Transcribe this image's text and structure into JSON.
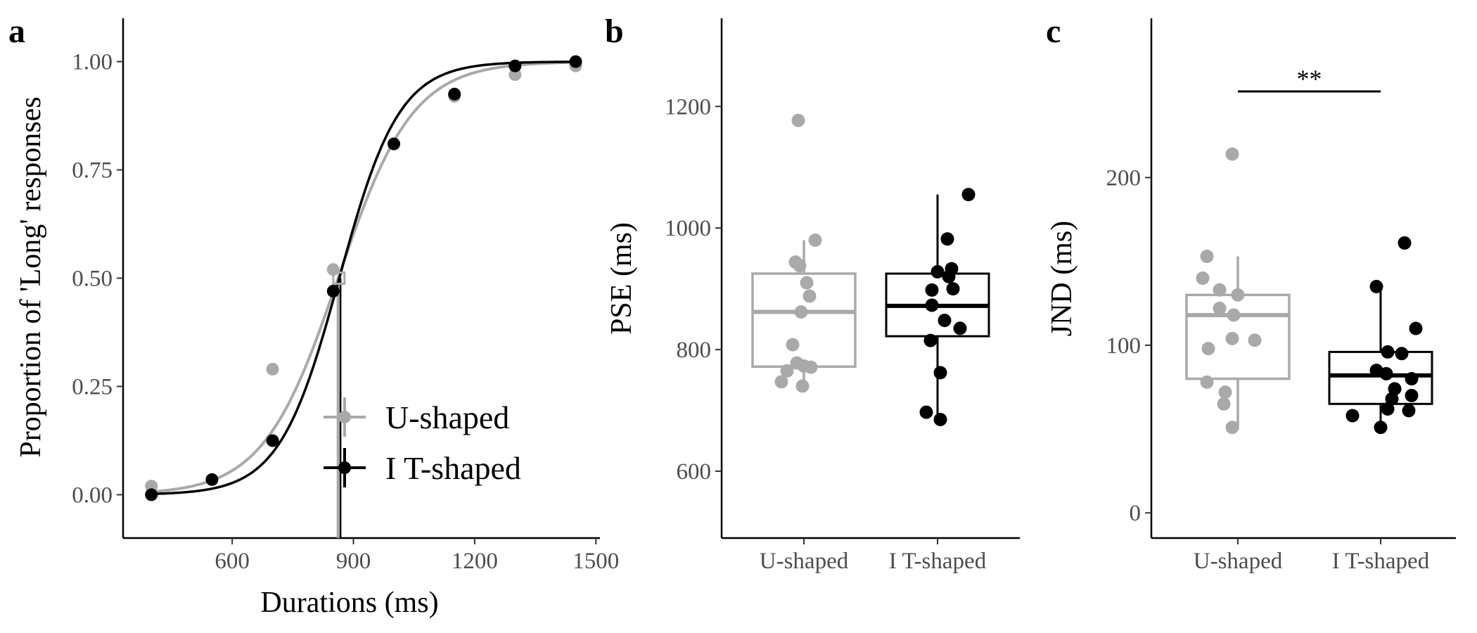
{
  "colors": {
    "u_shaped": "#a9a9a9",
    "t_shaped": "#000000"
  },
  "chart_data": [
    {
      "panel": "a",
      "type": "line",
      "xlabel": "Durations (ms)",
      "ylabel": "Proportion of 'Long' responses",
      "xlim": [
        330,
        1510
      ],
      "ylim": [
        -0.1,
        1.1
      ],
      "x_ticks": [
        600,
        900,
        1200,
        1500
      ],
      "y_ticks": [
        "0.00",
        "0.25",
        "0.50",
        "0.75",
        "1.00"
      ],
      "legend": {
        "position": "bottom-right"
      },
      "series": [
        {
          "name": "U-shaped",
          "color": "#a9a9a9",
          "points": [
            [
              400,
              0.02
            ],
            [
              700,
              0.29
            ],
            [
              850,
              0.52
            ],
            [
              1000,
              0.81
            ],
            [
              1150,
              0.92
            ],
            [
              1300,
              0.97
            ],
            [
              1450,
              0.99
            ]
          ],
          "fit": {
            "pse": 862,
            "slope": 0.0108
          },
          "pse_marker": 862
        },
        {
          "name": "I T-shaped",
          "color": "#000000",
          "points": [
            [
              400,
              0.0
            ],
            [
              550,
              0.035
            ],
            [
              700,
              0.125
            ],
            [
              850,
              0.47
            ],
            [
              1000,
              0.81
            ],
            [
              1150,
              0.925
            ],
            [
              1300,
              0.99
            ],
            [
              1450,
              1.0
            ]
          ],
          "fit": {
            "pse": 865,
            "slope": 0.0135
          },
          "pse_marker": 868
        }
      ]
    },
    {
      "panel": "b",
      "type": "box",
      "ylabel": "PSE (ms)",
      "ylim": [
        490,
        1345
      ],
      "y_ticks": [
        600,
        800,
        1000,
        1200
      ],
      "categories": [
        "U-shaped",
        "I T-shaped"
      ],
      "boxes": [
        {
          "category": "U-shaped",
          "color": "#a9a9a9",
          "q1": 772,
          "median": 862,
          "q3": 925,
          "whisker_low": 738,
          "whisker_high": 980,
          "points": [
            [
              -0.04,
              1177
            ],
            [
              0.08,
              980
            ],
            [
              -0.06,
              944
            ],
            [
              -0.03,
              938
            ],
            [
              0.02,
              910
            ],
            [
              0.04,
              888
            ],
            [
              -0.02,
              862
            ],
            [
              -0.08,
              808
            ],
            [
              -0.05,
              778
            ],
            [
              0.0,
              773
            ],
            [
              0.05,
              771
            ],
            [
              -0.12,
              765
            ],
            [
              -0.16,
              747
            ],
            [
              -0.01,
              740
            ]
          ]
        },
        {
          "category": "I T-shaped",
          "color": "#000000",
          "q1": 822,
          "median": 872,
          "q3": 925,
          "whisker_low": 685,
          "whisker_high": 1055,
          "points": [
            [
              0.22,
              1055
            ],
            [
              0.07,
              982
            ],
            [
              0.0,
              928
            ],
            [
              0.1,
              933
            ],
            [
              0.08,
              920
            ],
            [
              -0.04,
              898
            ],
            [
              0.11,
              900
            ],
            [
              -0.04,
              873
            ],
            [
              0.05,
              848
            ],
            [
              0.16,
              835
            ],
            [
              -0.05,
              815
            ],
            [
              0.02,
              762
            ],
            [
              -0.08,
              697
            ],
            [
              0.02,
              685
            ]
          ]
        }
      ]
    },
    {
      "panel": "c",
      "type": "box",
      "ylabel": "JND (ms)",
      "ylim": [
        -15,
        295
      ],
      "y_ticks": [
        0,
        100,
        200
      ],
      "categories": [
        "U-shaped",
        "I T-shaped"
      ],
      "significance": "**",
      "boxes": [
        {
          "category": "U-shaped",
          "color": "#a9a9a9",
          "q1": 80,
          "median": 118,
          "q3": 130,
          "whisker_low": 50,
          "whisker_high": 153,
          "points": [
            [
              -0.04,
              214
            ],
            [
              -0.22,
              153
            ],
            [
              -0.25,
              140
            ],
            [
              -0.13,
              133
            ],
            [
              0.0,
              130
            ],
            [
              -0.13,
              122
            ],
            [
              -0.03,
              118
            ],
            [
              -0.04,
              104
            ],
            [
              -0.21,
              98
            ],
            [
              0.12,
              103
            ],
            [
              -0.22,
              78
            ],
            [
              -0.09,
              72
            ],
            [
              -0.1,
              65
            ],
            [
              -0.04,
              51
            ]
          ]
        },
        {
          "category": "I T-shaped",
          "color": "#000000",
          "q1": 65,
          "median": 82,
          "q3": 96,
          "whisker_low": 51,
          "whisker_high": 135,
          "points": [
            [
              0.17,
              161
            ],
            [
              -0.03,
              135
            ],
            [
              0.25,
              110
            ],
            [
              0.05,
              96
            ],
            [
              0.15,
              95
            ],
            [
              -0.03,
              85
            ],
            [
              0.04,
              83
            ],
            [
              0.22,
              80
            ],
            [
              0.1,
              74
            ],
            [
              0.08,
              68
            ],
            [
              0.22,
              70
            ],
            [
              -0.2,
              58
            ],
            [
              0.05,
              62
            ],
            [
              0.2,
              61
            ],
            [
              0.0,
              51
            ]
          ]
        }
      ]
    }
  ]
}
